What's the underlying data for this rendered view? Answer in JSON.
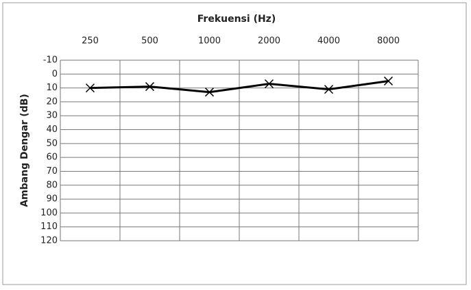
{
  "chart_data": {
    "type": "line",
    "x_label": "Frekuensi (Hz)",
    "y_label": "Ambang Dengar (dB)",
    "categories": [
      "250",
      "500",
      "1000",
      "2000",
      "4000",
      "8000"
    ],
    "values": [
      10,
      9,
      13,
      7,
      11,
      5
    ],
    "color": "#000000",
    "marker": "x",
    "ylim": [
      -10,
      120
    ],
    "yticks": [
      -10,
      0,
      10,
      20,
      30,
      40,
      50,
      60,
      70,
      80,
      90,
      100,
      110,
      120
    ],
    "y_inverted": true,
    "grid": true
  }
}
